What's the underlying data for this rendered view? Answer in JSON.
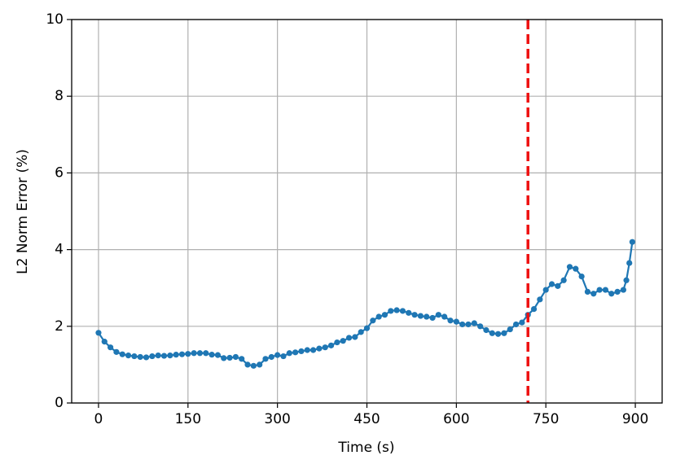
{
  "chart_data": {
    "type": "line",
    "xlabel": "Time (s)",
    "ylabel": "L2 Norm Error (%)",
    "x": [
      0,
      10,
      20,
      30,
      40,
      50,
      60,
      70,
      80,
      90,
      100,
      110,
      120,
      130,
      140,
      150,
      160,
      170,
      180,
      190,
      200,
      210,
      220,
      230,
      240,
      250,
      260,
      270,
      280,
      290,
      300,
      310,
      320,
      330,
      340,
      350,
      360,
      370,
      380,
      390,
      400,
      410,
      420,
      430,
      440,
      450,
      460,
      470,
      480,
      490,
      500,
      510,
      520,
      530,
      540,
      550,
      560,
      570,
      580,
      590,
      600,
      610,
      620,
      630,
      640,
      650,
      660,
      670,
      680,
      690,
      700,
      710,
      720,
      730,
      740,
      750,
      760,
      770,
      780,
      790,
      800,
      810,
      820,
      830,
      840,
      850,
      860,
      870,
      880,
      885,
      890,
      895
    ],
    "series": [
      {
        "color": "#1f77b4",
        "values": [
          1.83,
          1.6,
          1.45,
          1.33,
          1.27,
          1.24,
          1.22,
          1.2,
          1.19,
          1.22,
          1.24,
          1.23,
          1.24,
          1.26,
          1.27,
          1.28,
          1.3,
          1.3,
          1.3,
          1.26,
          1.25,
          1.17,
          1.18,
          1.2,
          1.15,
          1.0,
          0.97,
          1.0,
          1.15,
          1.2,
          1.25,
          1.22,
          1.3,
          1.32,
          1.35,
          1.38,
          1.38,
          1.42,
          1.45,
          1.5,
          1.58,
          1.62,
          1.7,
          1.72,
          1.85,
          1.95,
          2.15,
          2.25,
          2.3,
          2.4,
          2.42,
          2.4,
          2.35,
          2.3,
          2.27,
          2.25,
          2.22,
          2.3,
          2.25,
          2.15,
          2.12,
          2.05,
          2.05,
          2.08,
          2.0,
          1.9,
          1.82,
          1.8,
          1.82,
          1.92,
          2.05,
          2.1,
          2.3,
          2.45,
          2.7,
          2.95,
          3.1,
          3.05,
          3.2,
          3.55,
          3.5,
          3.3,
          2.9,
          2.85,
          2.95,
          2.95,
          2.85,
          2.9,
          2.95,
          3.2,
          3.65,
          4.2
        ]
      }
    ],
    "vline": {
      "x": 720,
      "color": "#ee1111"
    },
    "xlim": [
      -45,
      945
    ],
    "ylim": [
      0,
      10
    ],
    "xticks": [
      0,
      150,
      300,
      450,
      600,
      750,
      900
    ],
    "yticks": [
      0,
      2,
      4,
      6,
      8,
      10
    ],
    "grid": true
  }
}
